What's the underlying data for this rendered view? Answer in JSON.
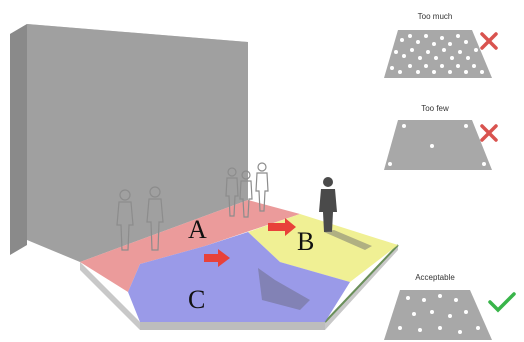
{
  "zones": [
    {
      "letter": "A",
      "color": "#e88a8a"
    },
    {
      "letter": "B",
      "color": "#eeee88"
    },
    {
      "letter": "C",
      "color": "#8f8fe6"
    }
  ],
  "panels": [
    {
      "label": "Too much",
      "verdict": "cross-icon",
      "verdict_color": "#d9534f"
    },
    {
      "label": "Too few",
      "verdict": "cross-icon",
      "verdict_color": "#d9534f"
    },
    {
      "label": "Acceptable",
      "verdict": "check-icon",
      "verdict_color": "#39b54a"
    }
  ],
  "colors": {
    "wall_front": "#9a9a9a",
    "wall_top": "#c8c8c8",
    "wall_side": "#7f7f7f",
    "base": "#d8d8d8",
    "arrow": "#e8413a",
    "sample_shape": "#a8a8a8"
  }
}
